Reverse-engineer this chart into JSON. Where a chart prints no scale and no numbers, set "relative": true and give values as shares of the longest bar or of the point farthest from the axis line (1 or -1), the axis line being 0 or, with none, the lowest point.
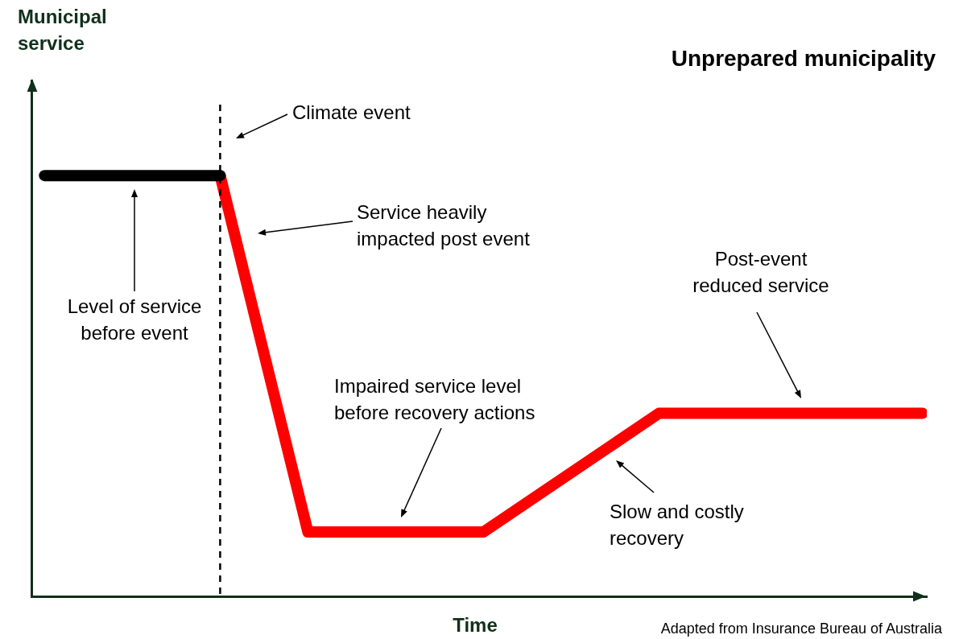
{
  "chart_data": {
    "type": "line",
    "title": "Unprepared municipality",
    "xlabel": "Time",
    "relative": true,
    "categories": [
      null,
      null,
      null,
      null,
      null,
      null,
      null,
      null,
      null,
      null,
      null,
      null,
      null,
      null,
      null,
      null,
      null,
      null,
      null,
      null,
      null
    ],
    "series": [
      {
        "color": "#000000",
        "values": [
          1,
          null,
          null,
          null,
          1,
          null,
          null,
          null,
          null,
          null,
          null,
          null,
          null,
          null,
          null,
          null,
          null,
          null,
          null,
          null,
          null
        ]
      },
      {
        "color": "#ff0000",
        "values": [
          null,
          null,
          null,
          null,
          1,
          null,
          0.153,
          null,
          null,
          null,
          0.153,
          null,
          null,
          null,
          0.435,
          null,
          null,
          null,
          null,
          null,
          0.435
        ]
      }
    ],
    "annotations": [
      "Municipal service",
      "Climate event",
      "Level of service before event",
      "Service heavily impacted post event",
      "Post-event reduced service",
      "Impaired service level before recovery actions",
      "Slow and costly recovery",
      "Adapted from Insurance Bureau of Australia"
    ],
    "legend": false,
    "grid": false,
    "marker": "none",
    "line_style": "solid"
  }
}
